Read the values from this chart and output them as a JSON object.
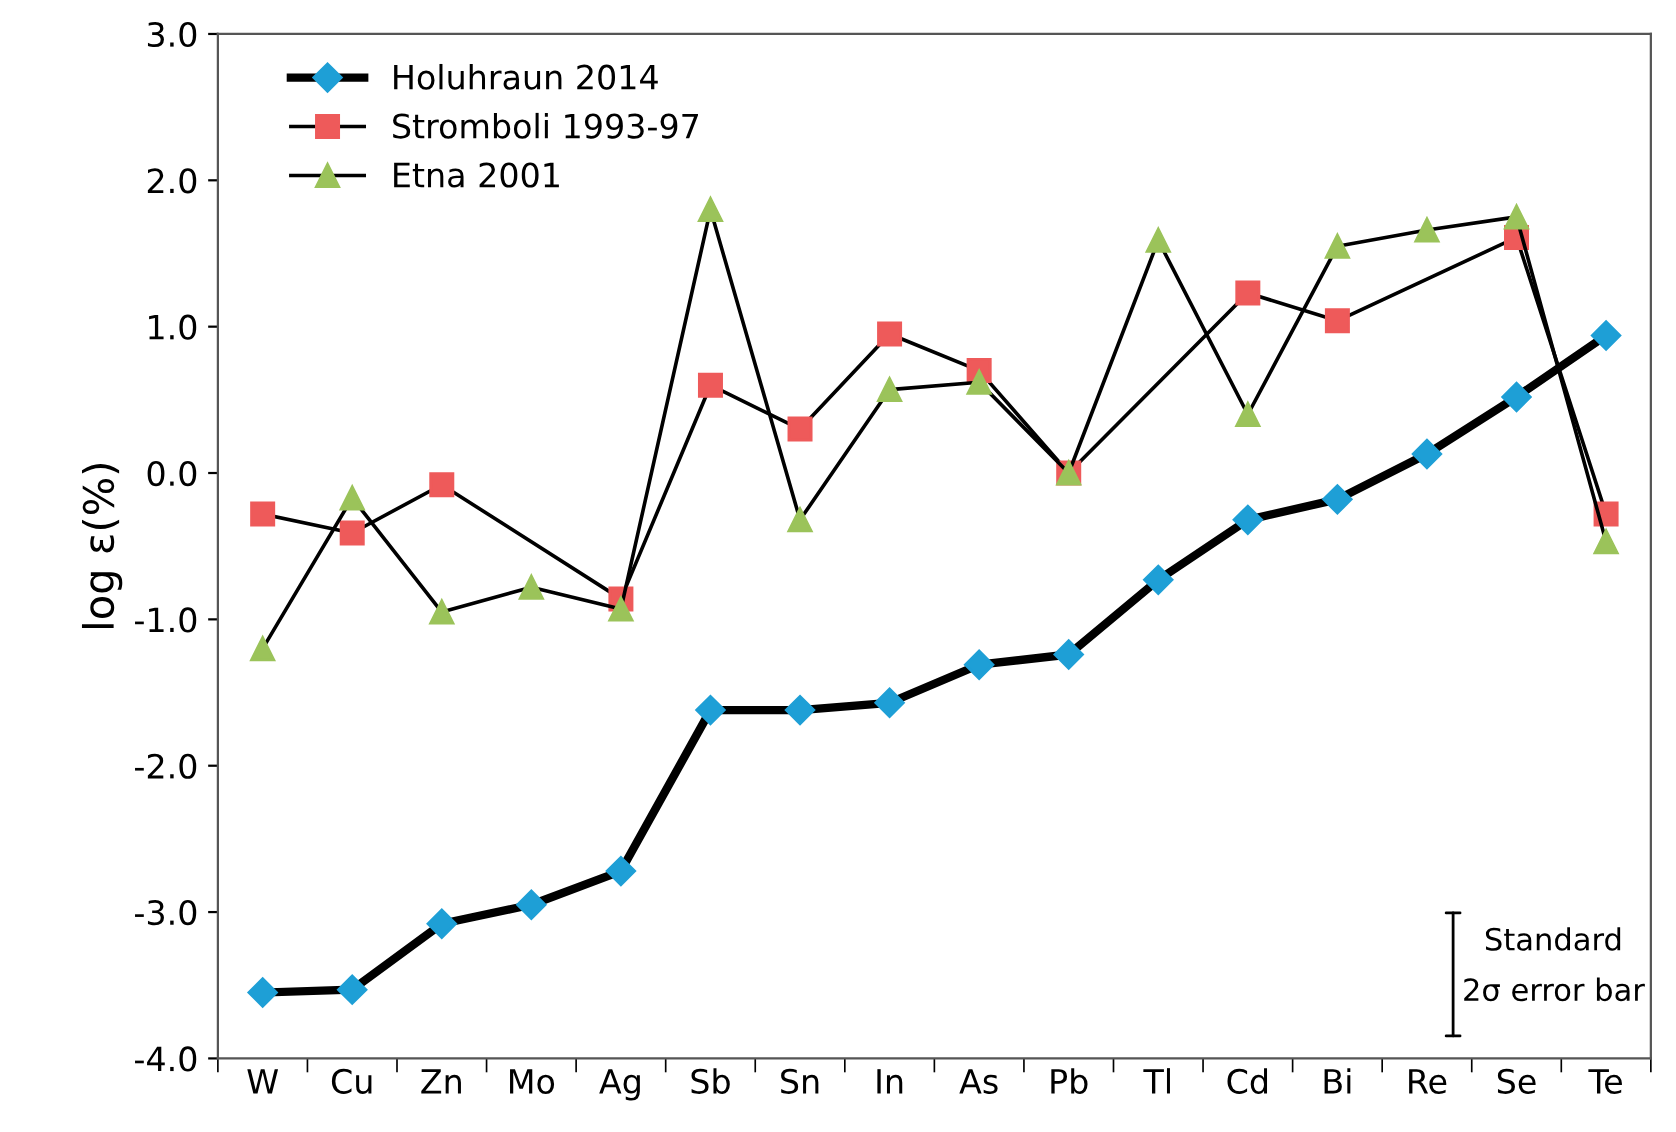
{
  "chart_data": {
    "type": "line",
    "ylabel": "log ε(%)",
    "categories": [
      "W",
      "Cu",
      "Zn",
      "Mo",
      "Ag",
      "Sb",
      "Sn",
      "In",
      "As",
      "Pb",
      "Tl",
      "Cd",
      "Bi",
      "Re",
      "Se",
      "Te"
    ],
    "series": [
      {
        "name": "Holuhraun 2014",
        "color": "#1e9fd6",
        "marker": "diamond",
        "values": [
          -3.55,
          -3.53,
          -3.08,
          -2.95,
          -2.72,
          -1.62,
          -1.62,
          -1.57,
          -1.31,
          -1.24,
          -0.73,
          -0.32,
          -0.18,
          0.13,
          0.52,
          0.94
        ]
      },
      {
        "name": "Stromboli 1993-97",
        "color": "#ee5a5a",
        "marker": "square",
        "values": [
          -0.28,
          -0.41,
          -0.08,
          null,
          -0.86,
          0.6,
          0.3,
          0.95,
          0.7,
          0.0,
          null,
          1.23,
          1.04,
          null,
          1.61,
          -0.28
        ]
      },
      {
        "name": "Etna 2001",
        "color": "#9bc35a",
        "marker": "triangle",
        "values": [
          -1.2,
          -0.17,
          -0.95,
          -0.78,
          -0.93,
          1.8,
          -0.32,
          0.57,
          0.62,
          0.0,
          1.59,
          0.4,
          1.55,
          1.66,
          1.75,
          -0.47
        ]
      }
    ],
    "ylim": [
      -4,
      3
    ],
    "yticks": [
      {
        "value": -4,
        "label": "-4.0"
      },
      {
        "value": -3,
        "label": "-3.0"
      },
      {
        "value": -2,
        "label": "-2.0"
      },
      {
        "value": -1,
        "label": "-1.0"
      },
      {
        "value": 0,
        "label": "0.0"
      },
      {
        "value": 1,
        "label": "1.0"
      },
      {
        "value": 2,
        "label": "2.0"
      },
      {
        "value": 3,
        "label": "3.0"
      }
    ],
    "grid": false,
    "legend": "top left",
    "annotations": [
      "Standard\n2σ error bar"
    ]
  }
}
